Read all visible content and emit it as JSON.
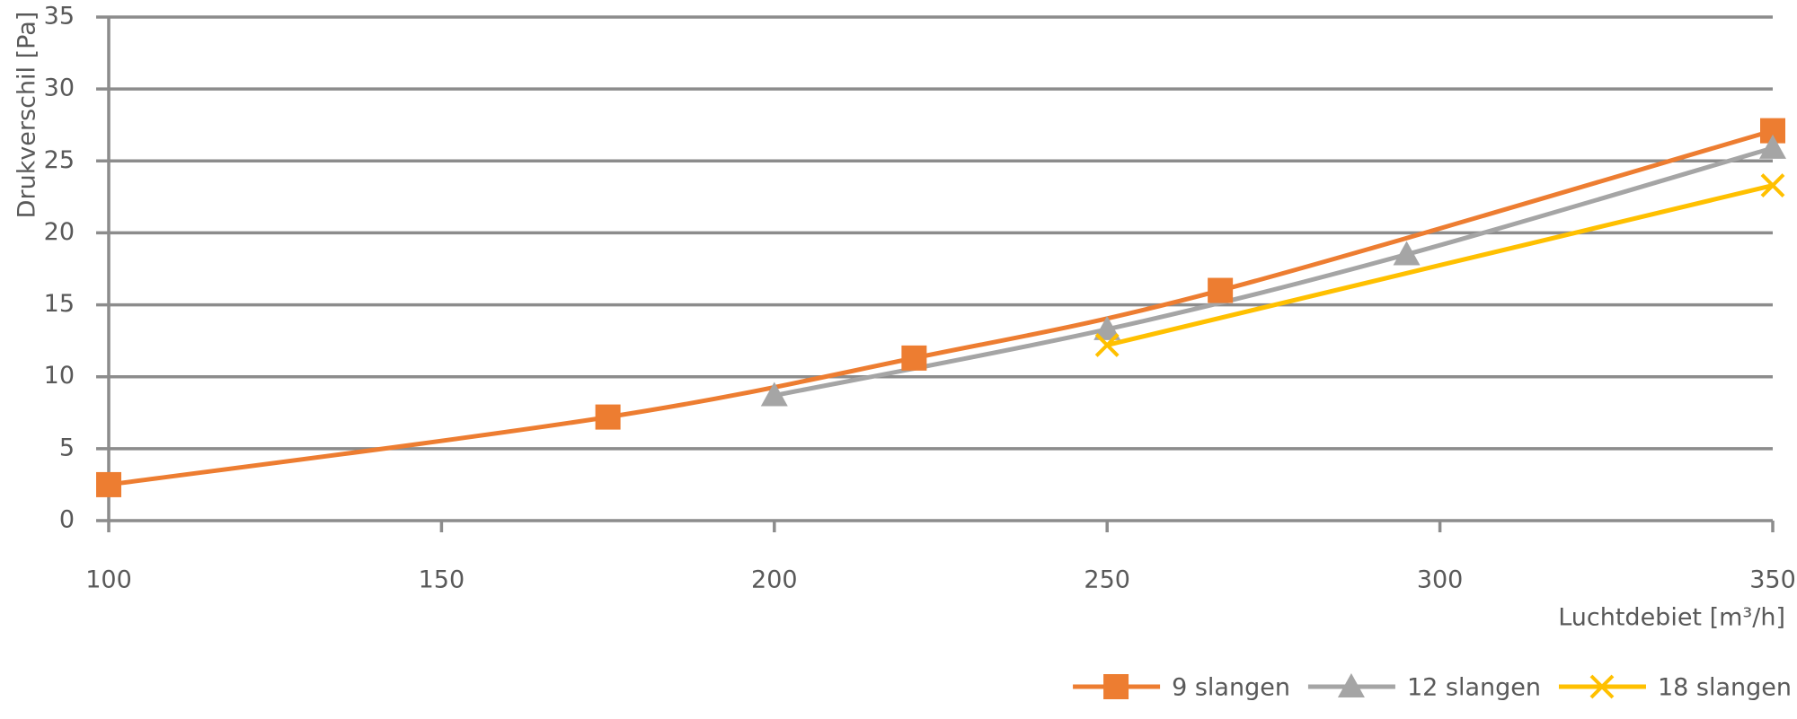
{
  "chart_data": {
    "type": "line",
    "x_label": "Luchtdebiet [m³/h]",
    "y_label": "Drukverschil [Pa]",
    "series": [
      {
        "name": "9 slangen",
        "color": "#ED7D31",
        "marker": "square",
        "x": [
          100,
          175,
          221,
          267,
          350
        ],
        "values": [
          2.5,
          7.2,
          11.3,
          16.0,
          27.1
        ]
      },
      {
        "name": "12 slangen",
        "color": "#A5A5A5",
        "marker": "triangle",
        "x": [
          200,
          250,
          295,
          350
        ],
        "values": [
          8.7,
          13.3,
          18.5,
          25.9
        ]
      },
      {
        "name": "18 slangen",
        "color": "#FFC000",
        "marker": "x",
        "x": [
          250,
          350
        ],
        "values": [
          12.2,
          23.3
        ]
      }
    ],
    "xlim": [
      100,
      350
    ],
    "xticks": [
      100,
      150,
      200,
      250,
      300,
      350
    ],
    "ylim": [
      0,
      35
    ],
    "yticks": [
      0,
      5,
      10,
      15,
      20,
      25,
      30,
      35
    ],
    "grid": true,
    "smooth": true,
    "legend": "bottom-right"
  }
}
